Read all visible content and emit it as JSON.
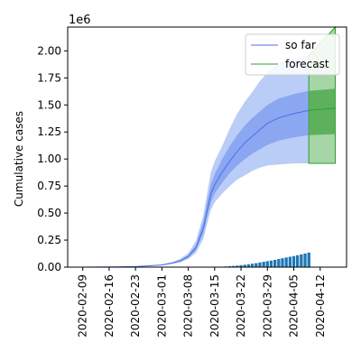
{
  "chart_data": {
    "type": "line",
    "ylabel": "Cumulative cases",
    "y_multiplier": "1e6",
    "ylim": [
      0,
      2.22
    ],
    "xlim": [
      "2020-02-05",
      "2020-04-19"
    ],
    "x_tick_labels": [
      "2020-02-09",
      "2020-02-16",
      "2020-02-23",
      "2020-03-01",
      "2020-03-08",
      "2020-03-15",
      "2020-03-22",
      "2020-03-29",
      "2020-04-05",
      "2020-04-12"
    ],
    "y_tick_labels": [
      "0.00",
      "0.25",
      "0.50",
      "0.75",
      "1.00",
      "1.25",
      "1.50",
      "1.75",
      "2.00"
    ],
    "grid": false,
    "legend_position": "top-right",
    "colors": {
      "so_far": "#4b6fe6",
      "so_far_band_outer": "#b9cdf6",
      "so_far_band_inner": "#7f9df0",
      "forecast": "#2c9e2c",
      "forecast_band_outer": "#a6d6a6",
      "forecast_band_inner": "#55ad55",
      "bars": "#1f77b4"
    },
    "series": [
      {
        "name": "so far",
        "x": [
          "2020-02-09",
          "2020-02-16",
          "2020-02-23",
          "2020-03-01",
          "2020-03-04",
          "2020-03-06",
          "2020-03-08",
          "2020-03-10",
          "2020-03-12",
          "2020-03-13",
          "2020-03-14",
          "2020-03-15",
          "2020-03-17",
          "2020-03-19",
          "2020-03-21",
          "2020-03-23",
          "2020-03-25",
          "2020-03-27",
          "2020-03-29",
          "2020-04-01",
          "2020-04-05",
          "2020-04-09"
        ],
        "y": [
          0.0,
          0.002,
          0.005,
          0.02,
          0.04,
          0.06,
          0.1,
          0.18,
          0.36,
          0.52,
          0.68,
          0.76,
          0.88,
          0.98,
          1.07,
          1.15,
          1.21,
          1.27,
          1.33,
          1.38,
          1.42,
          1.45
        ],
        "lower": [
          0.0,
          0.001,
          0.004,
          0.016,
          0.03,
          0.045,
          0.075,
          0.13,
          0.26,
          0.4,
          0.53,
          0.6,
          0.68,
          0.75,
          0.81,
          0.85,
          0.89,
          0.92,
          0.94,
          0.95,
          0.96,
          0.96
        ],
        "upper": [
          0.0,
          0.003,
          0.006,
          0.025,
          0.05,
          0.08,
          0.13,
          0.24,
          0.48,
          0.68,
          0.88,
          0.98,
          1.12,
          1.28,
          1.42,
          1.53,
          1.62,
          1.72,
          1.8,
          1.88,
          1.93,
          1.96
        ],
        "inner_lower": [
          0.0,
          0.0015,
          0.0045,
          0.018,
          0.035,
          0.052,
          0.088,
          0.155,
          0.31,
          0.46,
          0.6,
          0.68,
          0.78,
          0.87,
          0.94,
          1.0,
          1.05,
          1.09,
          1.13,
          1.17,
          1.2,
          1.22
        ],
        "inner_upper": [
          0.0,
          0.0025,
          0.0055,
          0.022,
          0.045,
          0.068,
          0.11,
          0.2,
          0.42,
          0.6,
          0.77,
          0.86,
          1.0,
          1.12,
          1.22,
          1.31,
          1.38,
          1.44,
          1.5,
          1.56,
          1.6,
          1.63
        ]
      },
      {
        "name": "forecast",
        "x": [
          "2020-04-09",
          "2020-04-16"
        ],
        "y": [
          1.45,
          1.47
        ],
        "lower": [
          0.96,
          0.96
        ],
        "upper": [
          1.96,
          2.22
        ],
        "inner_lower": [
          1.22,
          1.23
        ],
        "inner_upper": [
          1.63,
          1.65
        ]
      }
    ],
    "bars": {
      "x": [
        "2020-03-16",
        "2020-03-17",
        "2020-03-18",
        "2020-03-19",
        "2020-03-20",
        "2020-03-21",
        "2020-03-22",
        "2020-03-23",
        "2020-03-24",
        "2020-03-25",
        "2020-03-26",
        "2020-03-27",
        "2020-03-28",
        "2020-03-29",
        "2020-03-30",
        "2020-03-31",
        "2020-04-01",
        "2020-04-02",
        "2020-04-03",
        "2020-04-04",
        "2020-04-05",
        "2020-04-06",
        "2020-04-07",
        "2020-04-08",
        "2020-04-09"
      ],
      "values": [
        0.002,
        0.004,
        0.006,
        0.008,
        0.011,
        0.014,
        0.018,
        0.022,
        0.027,
        0.032,
        0.037,
        0.043,
        0.049,
        0.055,
        0.061,
        0.068,
        0.075,
        0.082,
        0.089,
        0.096,
        0.103,
        0.11,
        0.118,
        0.126,
        0.134
      ]
    }
  }
}
